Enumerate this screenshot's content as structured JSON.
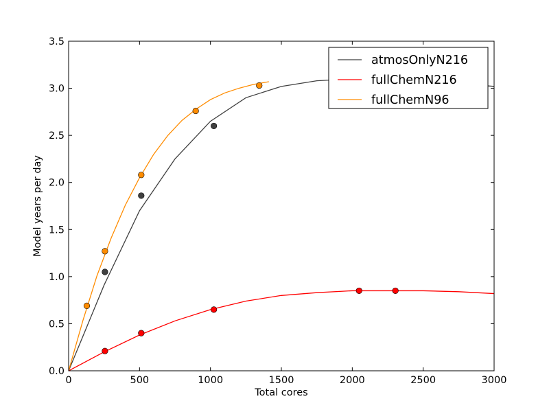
{
  "chart_data": {
    "type": "scatter",
    "xlabel": "Total cores",
    "ylabel": "Model years per day",
    "xlim": [
      0,
      3000
    ],
    "ylim": [
      0,
      3.5
    ],
    "xticks": [
      "0",
      "500",
      "1000",
      "1500",
      "2000",
      "2500",
      "3000"
    ],
    "yticks": [
      "0.0",
      "0.5",
      "1.0",
      "1.5",
      "2.0",
      "2.5",
      "3.0",
      "3.5"
    ],
    "grid": false,
    "legend_position": "top-right",
    "series": [
      {
        "name": "atmosOnlyN216",
        "color": "#404040",
        "points": [
          [
            256,
            1.05
          ],
          [
            512,
            1.86
          ],
          [
            1024,
            2.6
          ]
        ],
        "fit_curve": [
          [
            0,
            0
          ],
          [
            250,
            0.91
          ],
          [
            500,
            1.7
          ],
          [
            750,
            2.25
          ],
          [
            1000,
            2.65
          ],
          [
            1250,
            2.9
          ],
          [
            1500,
            3.02
          ],
          [
            1750,
            3.08
          ],
          [
            2000,
            3.1
          ],
          [
            2250,
            3.1
          ],
          [
            2500,
            3.08
          ],
          [
            2750,
            3.05
          ],
          [
            3000,
            3.02
          ]
        ]
      },
      {
        "name": "fullChemN216",
        "color": "#ff0000",
        "points": [
          [
            256,
            0.21
          ],
          [
            512,
            0.4
          ],
          [
            1024,
            0.65
          ],
          [
            2048,
            0.85
          ],
          [
            2304,
            0.85
          ]
        ],
        "fit_curve": [
          [
            0,
            0
          ],
          [
            250,
            0.2
          ],
          [
            500,
            0.38
          ],
          [
            750,
            0.53
          ],
          [
            1000,
            0.65
          ],
          [
            1250,
            0.74
          ],
          [
            1500,
            0.8
          ],
          [
            1750,
            0.83
          ],
          [
            2000,
            0.85
          ],
          [
            2250,
            0.85
          ],
          [
            2500,
            0.85
          ],
          [
            2750,
            0.84
          ],
          [
            3000,
            0.82
          ]
        ]
      },
      {
        "name": "fullChemN96",
        "color": "#ff8c00",
        "points": [
          [
            128,
            0.69
          ],
          [
            256,
            1.27
          ],
          [
            512,
            2.08
          ],
          [
            896,
            2.76
          ],
          [
            1344,
            3.03
          ]
        ],
        "fit_curve": [
          [
            0,
            0
          ],
          [
            100,
            0.53
          ],
          [
            200,
            1.01
          ],
          [
            300,
            1.41
          ],
          [
            400,
            1.76
          ],
          [
            500,
            2.05
          ],
          [
            600,
            2.3
          ],
          [
            700,
            2.5
          ],
          [
            800,
            2.66
          ],
          [
            900,
            2.78
          ],
          [
            1000,
            2.88
          ],
          [
            1100,
            2.95
          ],
          [
            1200,
            3.0
          ],
          [
            1300,
            3.04
          ],
          [
            1412,
            3.07
          ]
        ]
      }
    ]
  }
}
